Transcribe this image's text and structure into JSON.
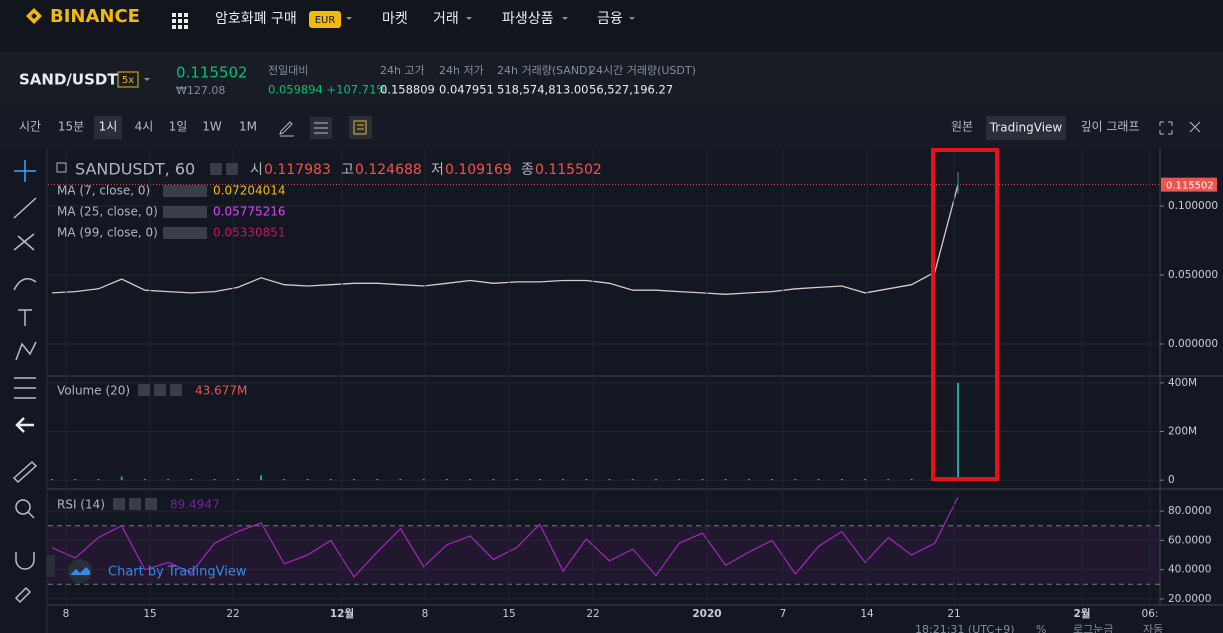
{
  "nav": {
    "logo": "BINANCE",
    "items": [
      "암호화폐 구매",
      "마켓",
      "거래",
      "파생상품",
      "금융"
    ],
    "badge": "EUR"
  },
  "ticker": {
    "pair": "SAND/USDT",
    "leverage": "5x",
    "price": "0.115502",
    "price_krw": "₩127.08",
    "stats": [
      {
        "label": "전일대비",
        "value": "0.059894 +107.71%"
      },
      {
        "label": "24h 고가",
        "value": "0.158809"
      },
      {
        "label": "24h 저가",
        "value": "0.047951"
      },
      {
        "label": "24h 거래량(SAND)",
        "value": "518,574,813.00"
      },
      {
        "label": "24시간 거래량(USDT)",
        "value": "56,527,196.27"
      }
    ]
  },
  "toolbar": {
    "label": "시간",
    "intervals": [
      "15분",
      "1시",
      "4시",
      "1일",
      "1W",
      "1M"
    ],
    "views": [
      "원본",
      "TradingView",
      "깊이 그래프"
    ]
  },
  "time_axis": {
    "labels": [
      "8",
      "15",
      "22",
      "12월",
      "8",
      "15",
      "22",
      "2020",
      "7",
      "14",
      "21",
      "2월",
      "06:"
    ]
  },
  "footer": {
    "watermark": "Chart by TradingView",
    "time": "18:21:31 (UTC+9)",
    "items": [
      "%",
      "로그눈금",
      "자동"
    ]
  },
  "chart_data": [
    {
      "type": "line",
      "title": "SANDUSDT, 60",
      "ohlc_labels": [
        "시",
        "고",
        "저",
        "종"
      ],
      "ohlc": [
        0.117983,
        0.124688,
        0.109169,
        0.115502
      ],
      "indicators": [
        {
          "name": "MA (7, close, 0)",
          "value": 0.07204014,
          "color": "#f0b90b"
        },
        {
          "name": "MA (25, close, 0)",
          "value": 0.05775216,
          "color": "#e040fb"
        },
        {
          "name": "MA (99, close, 0)",
          "value": 0.05330851,
          "color": "#c2185b"
        }
      ],
      "values": [
        0.037,
        0.038,
        0.04,
        0.047,
        0.039,
        0.038,
        0.037,
        0.038,
        0.041,
        0.048,
        0.043,
        0.042,
        0.043,
        0.044,
        0.044,
        0.043,
        0.042,
        0.044,
        0.046,
        0.044,
        0.045,
        0.045,
        0.046,
        0.046,
        0.044,
        0.039,
        0.039,
        0.038,
        0.037,
        0.036,
        0.037,
        0.038,
        0.04,
        0.041,
        0.042,
        0.037,
        0.04,
        0.043,
        0.052,
        0.115502
      ],
      "color": "#d8c8cc",
      "ylim": [
        -0.0203,
        0.1406
      ],
      "yticks": [
        {
          "value": 0,
          "label": "0.000000"
        },
        {
          "value": 0.05,
          "label": "0.050000"
        },
        {
          "value": 0.1,
          "label": "0.100000"
        }
      ],
      "grid": true
    },
    {
      "type": "bar",
      "title": "Volume (20)",
      "current_label": "43.677M",
      "values": [
        5,
        5,
        5,
        15,
        5,
        5,
        5,
        5,
        5,
        20,
        5,
        5,
        5,
        5,
        5,
        5,
        5,
        5,
        5,
        5,
        5,
        5,
        5,
        5,
        5,
        5,
        5,
        5,
        5,
        5,
        5,
        5,
        5,
        5,
        5,
        5,
        5,
        5,
        12,
        400
      ],
      "color": "#26a69a",
      "ylim": [
        -24,
        420
      ],
      "yticks": [
        0,
        {
          "value": 200,
          "label": "200M"
        },
        {
          "value": 400,
          "label": "400M"
        }
      ],
      "grid": true
    },
    {
      "type": "line",
      "title": "RSI (14)",
      "values": [
        55,
        48,
        62,
        70,
        40,
        45,
        38,
        58,
        66,
        72,
        44,
        50,
        60,
        35,
        52,
        68,
        42,
        57,
        63,
        47,
        55,
        71,
        39,
        61,
        46,
        54,
        36,
        58,
        65,
        43,
        52,
        60,
        37,
        56,
        66,
        45,
        62,
        50,
        58,
        89.4947
      ],
      "color": "#9c27b0",
      "bands": [
        30,
        70
      ],
      "ylim": [
        17.2,
        93.8
      ],
      "yticks": [
        {
          "value": 20,
          "label": "20.0000"
        },
        {
          "value": 40,
          "label": "40.0000"
        },
        {
          "value": 60,
          "label": "60.0000"
        },
        {
          "value": 80,
          "label": "80.0000"
        }
      ],
      "grid": true
    }
  ]
}
